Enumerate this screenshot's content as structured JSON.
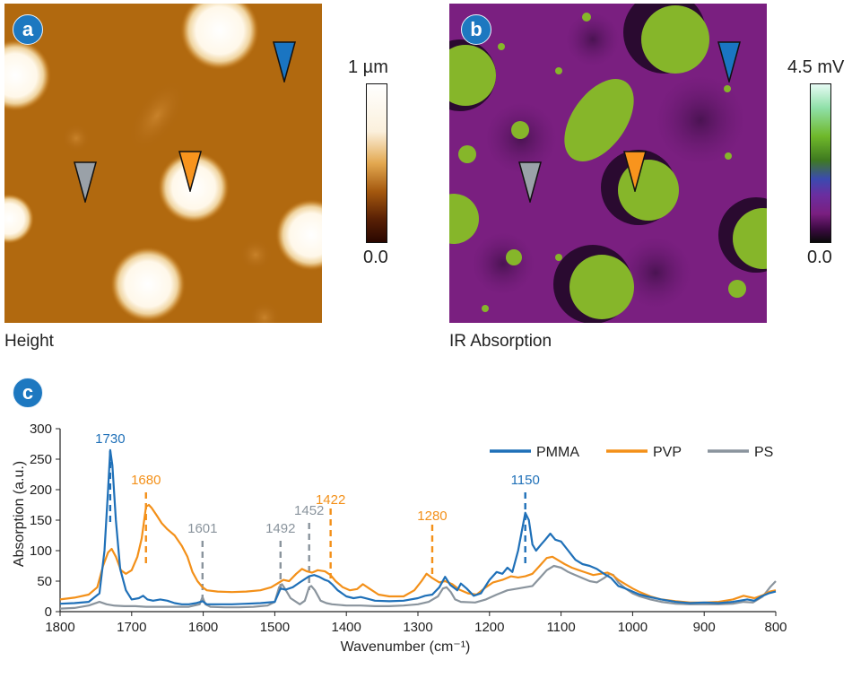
{
  "panels": {
    "a": {
      "badge": "a",
      "caption": "Height",
      "scale_top": "1 µm",
      "scale_bottom": "0.0"
    },
    "b": {
      "badge": "b",
      "caption": "IR Absorption",
      "scale_top": "4.5 mV",
      "scale_bottom": "0.0"
    },
    "c": {
      "badge": "c"
    }
  },
  "colors": {
    "pmma": "#1f70b8",
    "pvp": "#f39019",
    "ps": "#8a949d",
    "badge": "#1d78c0"
  },
  "chart_data": {
    "type": "line",
    "xlabel": "Wavenumber (cm⁻¹)",
    "ylabel": "Absorption (a.u.)",
    "xlim": [
      1800,
      800
    ],
    "ylim": [
      0,
      300
    ],
    "x_ticks": [
      1800,
      1700,
      1600,
      1500,
      1400,
      1300,
      1200,
      1100,
      1000,
      900,
      800
    ],
    "y_ticks": [
      0,
      50,
      100,
      150,
      200,
      250,
      300
    ],
    "legend_position": "top-right",
    "grid": false,
    "series": [
      {
        "name": "PMMA",
        "color": "#1f70b8",
        "points": [
          [
            1800,
            13
          ],
          [
            1780,
            14
          ],
          [
            1760,
            16
          ],
          [
            1745,
            30
          ],
          [
            1738,
            100
          ],
          [
            1733,
            200
          ],
          [
            1730,
            265
          ],
          [
            1727,
            240
          ],
          [
            1722,
            150
          ],
          [
            1716,
            70
          ],
          [
            1708,
            35
          ],
          [
            1700,
            20
          ],
          [
            1690,
            22
          ],
          [
            1684,
            26
          ],
          [
            1678,
            20
          ],
          [
            1670,
            18
          ],
          [
            1660,
            20
          ],
          [
            1650,
            18
          ],
          [
            1640,
            14
          ],
          [
            1630,
            12
          ],
          [
            1620,
            12
          ],
          [
            1610,
            14
          ],
          [
            1601,
            17
          ],
          [
            1595,
            12
          ],
          [
            1580,
            12
          ],
          [
            1560,
            12
          ],
          [
            1540,
            13
          ],
          [
            1520,
            14
          ],
          [
            1500,
            16
          ],
          [
            1492,
            38
          ],
          [
            1485,
            36
          ],
          [
            1475,
            40
          ],
          [
            1465,
            48
          ],
          [
            1452,
            58
          ],
          [
            1445,
            60
          ],
          [
            1438,
            57
          ],
          [
            1430,
            52
          ],
          [
            1425,
            50
          ],
          [
            1420,
            45
          ],
          [
            1412,
            35
          ],
          [
            1400,
            25
          ],
          [
            1390,
            22
          ],
          [
            1380,
            24
          ],
          [
            1370,
            21
          ],
          [
            1360,
            18
          ],
          [
            1340,
            17
          ],
          [
            1320,
            18
          ],
          [
            1300,
            22
          ],
          [
            1290,
            26
          ],
          [
            1280,
            28
          ],
          [
            1270,
            40
          ],
          [
            1262,
            57
          ],
          [
            1255,
            44
          ],
          [
            1245,
            35
          ],
          [
            1240,
            46
          ],
          [
            1232,
            38
          ],
          [
            1222,
            26
          ],
          [
            1212,
            30
          ],
          [
            1200,
            52
          ],
          [
            1190,
            65
          ],
          [
            1182,
            62
          ],
          [
            1175,
            72
          ],
          [
            1168,
            65
          ],
          [
            1160,
            100
          ],
          [
            1150,
            162
          ],
          [
            1145,
            150
          ],
          [
            1140,
            110
          ],
          [
            1135,
            100
          ],
          [
            1128,
            110
          ],
          [
            1122,
            118
          ],
          [
            1115,
            128
          ],
          [
            1108,
            118
          ],
          [
            1100,
            115
          ],
          [
            1090,
            100
          ],
          [
            1080,
            85
          ],
          [
            1070,
            78
          ],
          [
            1060,
            75
          ],
          [
            1050,
            70
          ],
          [
            1040,
            62
          ],
          [
            1030,
            55
          ],
          [
            1020,
            42
          ],
          [
            1010,
            38
          ],
          [
            1000,
            33
          ],
          [
            990,
            28
          ],
          [
            980,
            25
          ],
          [
            960,
            20
          ],
          [
            940,
            16
          ],
          [
            920,
            14
          ],
          [
            900,
            15
          ],
          [
            880,
            14
          ],
          [
            860,
            16
          ],
          [
            840,
            20
          ],
          [
            830,
            18
          ],
          [
            820,
            25
          ],
          [
            810,
            30
          ],
          [
            800,
            33
          ]
        ]
      },
      {
        "name": "PVP",
        "color": "#f39019",
        "points": [
          [
            1800,
            20
          ],
          [
            1780,
            23
          ],
          [
            1760,
            28
          ],
          [
            1748,
            40
          ],
          [
            1740,
            75
          ],
          [
            1733,
            97
          ],
          [
            1728,
            103
          ],
          [
            1722,
            90
          ],
          [
            1715,
            68
          ],
          [
            1708,
            62
          ],
          [
            1700,
            68
          ],
          [
            1692,
            90
          ],
          [
            1686,
            120
          ],
          [
            1680,
            172
          ],
          [
            1676,
            175
          ],
          [
            1672,
            170
          ],
          [
            1665,
            158
          ],
          [
            1658,
            145
          ],
          [
            1650,
            135
          ],
          [
            1640,
            125
          ],
          [
            1630,
            108
          ],
          [
            1622,
            90
          ],
          [
            1615,
            65
          ],
          [
            1608,
            50
          ],
          [
            1601,
            40
          ],
          [
            1595,
            35
          ],
          [
            1580,
            33
          ],
          [
            1560,
            32
          ],
          [
            1540,
            33
          ],
          [
            1520,
            35
          ],
          [
            1505,
            40
          ],
          [
            1495,
            47
          ],
          [
            1488,
            52
          ],
          [
            1480,
            50
          ],
          [
            1470,
            62
          ],
          [
            1462,
            70
          ],
          [
            1455,
            66
          ],
          [
            1448,
            64
          ],
          [
            1440,
            68
          ],
          [
            1430,
            66
          ],
          [
            1422,
            60
          ],
          [
            1415,
            50
          ],
          [
            1405,
            40
          ],
          [
            1395,
            35
          ],
          [
            1385,
            37
          ],
          [
            1377,
            45
          ],
          [
            1368,
            38
          ],
          [
            1355,
            28
          ],
          [
            1340,
            25
          ],
          [
            1320,
            25
          ],
          [
            1305,
            35
          ],
          [
            1295,
            50
          ],
          [
            1288,
            62
          ],
          [
            1280,
            55
          ],
          [
            1270,
            48
          ],
          [
            1262,
            50
          ],
          [
            1252,
            45
          ],
          [
            1242,
            36
          ],
          [
            1230,
            30
          ],
          [
            1218,
            28
          ],
          [
            1205,
            40
          ],
          [
            1195,
            48
          ],
          [
            1182,
            52
          ],
          [
            1170,
            58
          ],
          [
            1160,
            56
          ],
          [
            1150,
            58
          ],
          [
            1140,
            62
          ],
          [
            1130,
            75
          ],
          [
            1120,
            88
          ],
          [
            1112,
            90
          ],
          [
            1105,
            85
          ],
          [
            1095,
            78
          ],
          [
            1085,
            72
          ],
          [
            1075,
            68
          ],
          [
            1065,
            64
          ],
          [
            1055,
            60
          ],
          [
            1045,
            62
          ],
          [
            1035,
            64
          ],
          [
            1028,
            60
          ],
          [
            1020,
            52
          ],
          [
            1010,
            45
          ],
          [
            1000,
            38
          ],
          [
            990,
            32
          ],
          [
            975,
            25
          ],
          [
            960,
            20
          ],
          [
            940,
            17
          ],
          [
            920,
            15
          ],
          [
            900,
            15
          ],
          [
            880,
            16
          ],
          [
            860,
            20
          ],
          [
            845,
            26
          ],
          [
            830,
            22
          ],
          [
            818,
            27
          ],
          [
            808,
            33
          ],
          [
            800,
            35
          ]
        ]
      },
      {
        "name": "PS",
        "color": "#8a949d",
        "points": [
          [
            1800,
            5
          ],
          [
            1780,
            6
          ],
          [
            1760,
            10
          ],
          [
            1745,
            16
          ],
          [
            1735,
            12
          ],
          [
            1725,
            10
          ],
          [
            1710,
            9
          ],
          [
            1695,
            9
          ],
          [
            1680,
            8
          ],
          [
            1660,
            8
          ],
          [
            1640,
            8
          ],
          [
            1620,
            8
          ],
          [
            1605,
            12
          ],
          [
            1601,
            24
          ],
          [
            1597,
            12
          ],
          [
            1590,
            8
          ],
          [
            1570,
            7
          ],
          [
            1550,
            7
          ],
          [
            1530,
            8
          ],
          [
            1510,
            10
          ],
          [
            1500,
            16
          ],
          [
            1494,
            40
          ],
          [
            1490,
            45
          ],
          [
            1486,
            38
          ],
          [
            1478,
            22
          ],
          [
            1465,
            12
          ],
          [
            1458,
            18
          ],
          [
            1452,
            40
          ],
          [
            1449,
            42
          ],
          [
            1444,
            35
          ],
          [
            1436,
            18
          ],
          [
            1428,
            14
          ],
          [
            1420,
            12
          ],
          [
            1400,
            10
          ],
          [
            1380,
            10
          ],
          [
            1360,
            9
          ],
          [
            1340,
            9
          ],
          [
            1320,
            10
          ],
          [
            1300,
            12
          ],
          [
            1285,
            16
          ],
          [
            1272,
            25
          ],
          [
            1265,
            38
          ],
          [
            1260,
            40
          ],
          [
            1254,
            32
          ],
          [
            1248,
            20
          ],
          [
            1240,
            16
          ],
          [
            1220,
            15
          ],
          [
            1205,
            20
          ],
          [
            1190,
            28
          ],
          [
            1175,
            35
          ],
          [
            1160,
            38
          ],
          [
            1150,
            40
          ],
          [
            1140,
            42
          ],
          [
            1130,
            55
          ],
          [
            1120,
            68
          ],
          [
            1110,
            75
          ],
          [
            1100,
            72
          ],
          [
            1090,
            65
          ],
          [
            1080,
            60
          ],
          [
            1070,
            55
          ],
          [
            1060,
            50
          ],
          [
            1050,
            48
          ],
          [
            1040,
            55
          ],
          [
            1032,
            62
          ],
          [
            1027,
            60
          ],
          [
            1020,
            48
          ],
          [
            1010,
            38
          ],
          [
            1000,
            30
          ],
          [
            990,
            25
          ],
          [
            975,
            20
          ],
          [
            960,
            16
          ],
          [
            940,
            13
          ],
          [
            920,
            12
          ],
          [
            900,
            12
          ],
          [
            880,
            12
          ],
          [
            860,
            13
          ],
          [
            845,
            16
          ],
          [
            832,
            15
          ],
          [
            818,
            25
          ],
          [
            808,
            40
          ],
          [
            800,
            50
          ]
        ]
      }
    ],
    "annotations": [
      {
        "label": "1730",
        "x": 1730,
        "color": "#1f70b8"
      },
      {
        "label": "1680",
        "x": 1680,
        "color": "#f39019"
      },
      {
        "label": "1601",
        "x": 1601,
        "color": "#8a949d"
      },
      {
        "label": "1492",
        "x": 1492,
        "color": "#8a949d"
      },
      {
        "label": "1452",
        "x": 1452,
        "color": "#8a949d"
      },
      {
        "label": "1422",
        "x": 1422,
        "color": "#f39019"
      },
      {
        "label": "1280",
        "x": 1280,
        "color": "#f39019"
      },
      {
        "label": "1150",
        "x": 1150,
        "color": "#1f70b8"
      }
    ]
  }
}
